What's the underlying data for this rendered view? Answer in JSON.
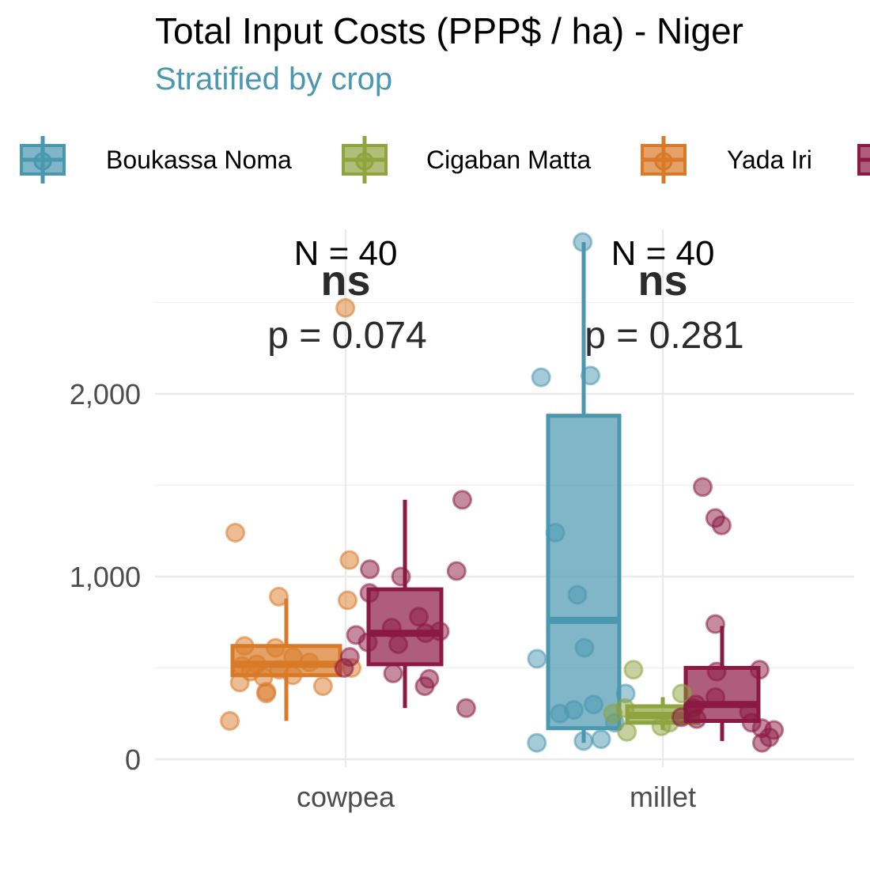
{
  "chart_data": {
    "type": "boxplot",
    "title": "Total Input Costs (PPP$ / ha) - Niger",
    "subtitle": "Stratified by crop",
    "xlabel": "",
    "ylabel": "",
    "categories": [
      "cowpea",
      "millet"
    ],
    "ylim": [
      0,
      2900
    ],
    "yticks": [
      0,
      1000,
      2000
    ],
    "ytick_labels": [
      "0",
      "1,000",
      "2,000"
    ],
    "grid": true,
    "legend_position": "top",
    "series": [
      {
        "name": "Boukassa Noma",
        "color": "#4A97B0",
        "boxes": {
          "millet": {
            "q1": 170,
            "median": 760,
            "q3": 1880,
            "whisker_low": 90,
            "whisker_high": 2830
          }
        },
        "points": {
          "millet": [
            2830,
            2100,
            2090,
            1240,
            900,
            610,
            550,
            360,
            300,
            270,
            250,
            200,
            110,
            90,
            100
          ]
        }
      },
      {
        "name": "Cigaban Matta",
        "color": "#8FA33F",
        "boxes": {
          "millet": {
            "q1": 200,
            "median": 240,
            "q3": 290,
            "whisker_low": 160,
            "whisker_high": 340
          }
        },
        "points": {
          "millet": [
            490,
            360,
            280,
            200,
            180,
            150,
            250
          ]
        }
      },
      {
        "name": "Yada Iri",
        "color": "#D97A28",
        "boxes": {
          "cowpea": {
            "q1": 460,
            "median": 520,
            "q3": 620,
            "whisker_low": 210,
            "whisker_high": 880
          }
        },
        "points": {
          "cowpea": [
            2470,
            1090,
            1240,
            890,
            870,
            620,
            610,
            560,
            530,
            520,
            510,
            500,
            490,
            480,
            460,
            450,
            420,
            400,
            370,
            360,
            210
          ]
        }
      },
      {
        "name": "",
        "color": "#8B1A42",
        "boxes": {
          "cowpea": {
            "q1": 520,
            "median": 690,
            "q3": 930,
            "whisker_low": 280,
            "whisker_high": 1420
          },
          "millet": {
            "q1": 210,
            "median": 300,
            "q3": 500,
            "whisker_low": 100,
            "whisker_high": 730
          }
        },
        "points": {
          "cowpea": [
            1420,
            1040,
            1030,
            1000,
            910,
            780,
            720,
            700,
            690,
            680,
            640,
            630,
            560,
            500,
            470,
            440,
            400,
            280
          ],
          "millet": [
            1490,
            1320,
            1280,
            740,
            490,
            480,
            340,
            300,
            280,
            260,
            230,
            220,
            200,
            170,
            160,
            120,
            90
          ]
        }
      }
    ],
    "annotations": [
      {
        "category": "cowpea",
        "n": "N = 40",
        "significance": "ns",
        "p": "p = 0.074"
      },
      {
        "category": "millet",
        "n": "N = 40",
        "significance": "ns",
        "p": "p = 0.281"
      }
    ]
  }
}
